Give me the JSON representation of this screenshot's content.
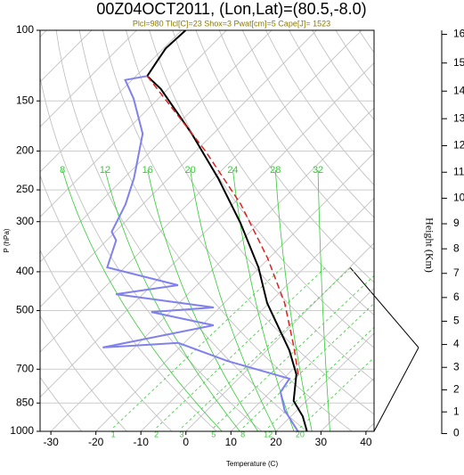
{
  "chart_data": {
    "type": "skewt",
    "title": "00Z04OCT2011, (Lon,Lat)=(80.5,-8.0)",
    "subtitle": "Plcl=980 Tlcl[C]=23 Shox=3 Pwat[cm]=5 Cape[J]= 1523",
    "xlabel": "Temperature (C)",
    "ylabel": "P (hPa)",
    "y2label": "Height (Km)",
    "xlim": [
      -32.4,
      41.8
    ],
    "xticks": [
      -30,
      -20,
      -10,
      0,
      10,
      20,
      30,
      40
    ],
    "ylim": [
      1000,
      100
    ],
    "yticks": [
      1000,
      850,
      700,
      500,
      400,
      300,
      250,
      200,
      150,
      100
    ],
    "log_y": true,
    "height_ticks": [
      0,
      1,
      2,
      3,
      4,
      5,
      6,
      7,
      8,
      9,
      10,
      11,
      12,
      13,
      14,
      15,
      16
    ],
    "moist_adiabats": {
      "color": "#33cc33",
      "values": [
        8,
        12,
        16,
        20,
        24,
        28,
        32
      ]
    },
    "mixing_ratios": {
      "color": "#33cc33",
      "values": [
        1,
        2,
        3,
        5,
        8,
        12,
        20
      ]
    },
    "series": [
      {
        "color": "#000000",
        "style": "solid",
        "pressure": [
          1000,
          917,
          840,
          721,
          628,
          479,
          390,
          302,
          234,
          181,
          140,
          130,
          120,
          111,
          100
        ],
        "values": [
          26.9,
          22.6,
          17.2,
          11.9,
          5.0,
          -10.4,
          -20.3,
          -34.2,
          -49,
          -64.8,
          -81.6,
          -87.5,
          -88.5,
          -89.5,
          -89.1
        ]
      },
      {
        "color": "#8080ee",
        "style": "solid",
        "pressure": [
          1000,
          885,
          798,
          739,
          667,
          602,
          618,
          544,
          504,
          491,
          455,
          432,
          390,
          334,
          318,
          272,
          234,
          181,
          148,
          133,
          130
        ],
        "values": [
          24.9,
          17.2,
          12.3,
          11.3,
          -6.5,
          -21.3,
          -37.1,
          -17.4,
          -34.2,
          -21.3,
          -46,
          -34.2,
          -53.9,
          -57.9,
          -60.8,
          -63.8,
          -67.7,
          -75.7,
          -85.5,
          -91.5,
          -87.5
        ]
      },
      {
        "color": "#dd2020",
        "style": "dashed",
        "pressure": [
          721,
          618,
          479,
          370,
          272,
          200,
          130
        ],
        "values": [
          12.3,
          5.4,
          -6.5,
          -20.3,
          -38.1,
          -57.9,
          -87.5
        ]
      }
    ]
  }
}
